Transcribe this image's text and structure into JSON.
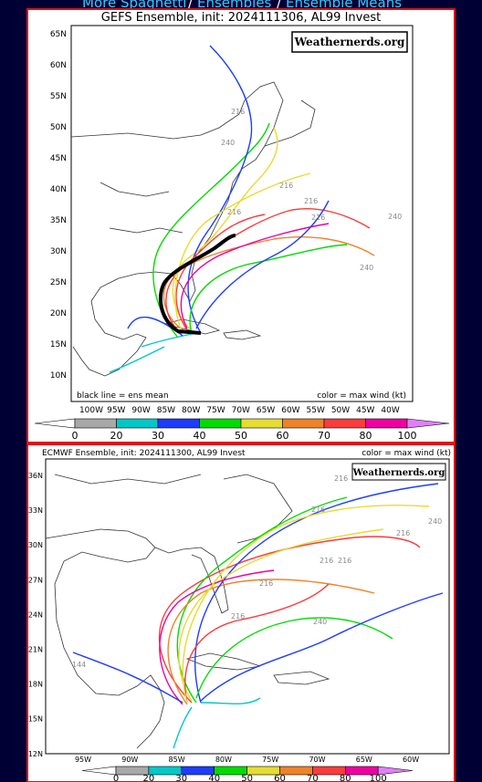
{
  "nav": {
    "links": [
      "More Spaghetti",
      "Ensembles",
      "Ensemble Means"
    ],
    "separators": [
      "/",
      "/"
    ]
  },
  "panels": [
    {
      "title": "GEFS Ensemble, init: 2024111306, AL99 Invest",
      "watermark": "Weathernerds.org",
      "lat_labels": [
        "65N",
        "60N",
        "55N",
        "50N",
        "45N",
        "40N",
        "35N",
        "30N",
        "25N",
        "20N",
        "15N",
        "10N"
      ],
      "lon_labels": [
        "100W",
        "95W",
        "90W",
        "85W",
        "80W",
        "75W",
        "70W",
        "65W",
        "60W",
        "55W",
        "50W",
        "45W",
        "40W"
      ],
      "mean_note": "black line = ens mean",
      "wind_note": "color = max wind (kt)",
      "track_labels": [
        "216",
        "240",
        "216",
        "216",
        "216",
        "216",
        "240",
        "240"
      ],
      "colorbar_labels": [
        0,
        20,
        30,
        40,
        50,
        60,
        70,
        80,
        100
      ]
    },
    {
      "title": "ECMWF Ensemble, init: 2024111300, AL99 Invest",
      "watermark": "Weathernerds.org",
      "lat_labels": [
        "36N",
        "33N",
        "30N",
        "27N",
        "24N",
        "21N",
        "18N",
        "15N",
        "12N"
      ],
      "lon_labels": [
        "95W",
        "90W",
        "85W",
        "80W",
        "75W",
        "70W",
        "65W",
        "60W"
      ],
      "wind_note": "color = max wind (kt)",
      "track_labels": [
        "216",
        "216",
        "216",
        "240",
        "216",
        "216",
        "240",
        "216",
        "216",
        "144"
      ],
      "colorbar_labels": [
        0,
        20,
        30,
        40,
        50,
        60,
        70,
        80,
        100
      ]
    }
  ]
}
